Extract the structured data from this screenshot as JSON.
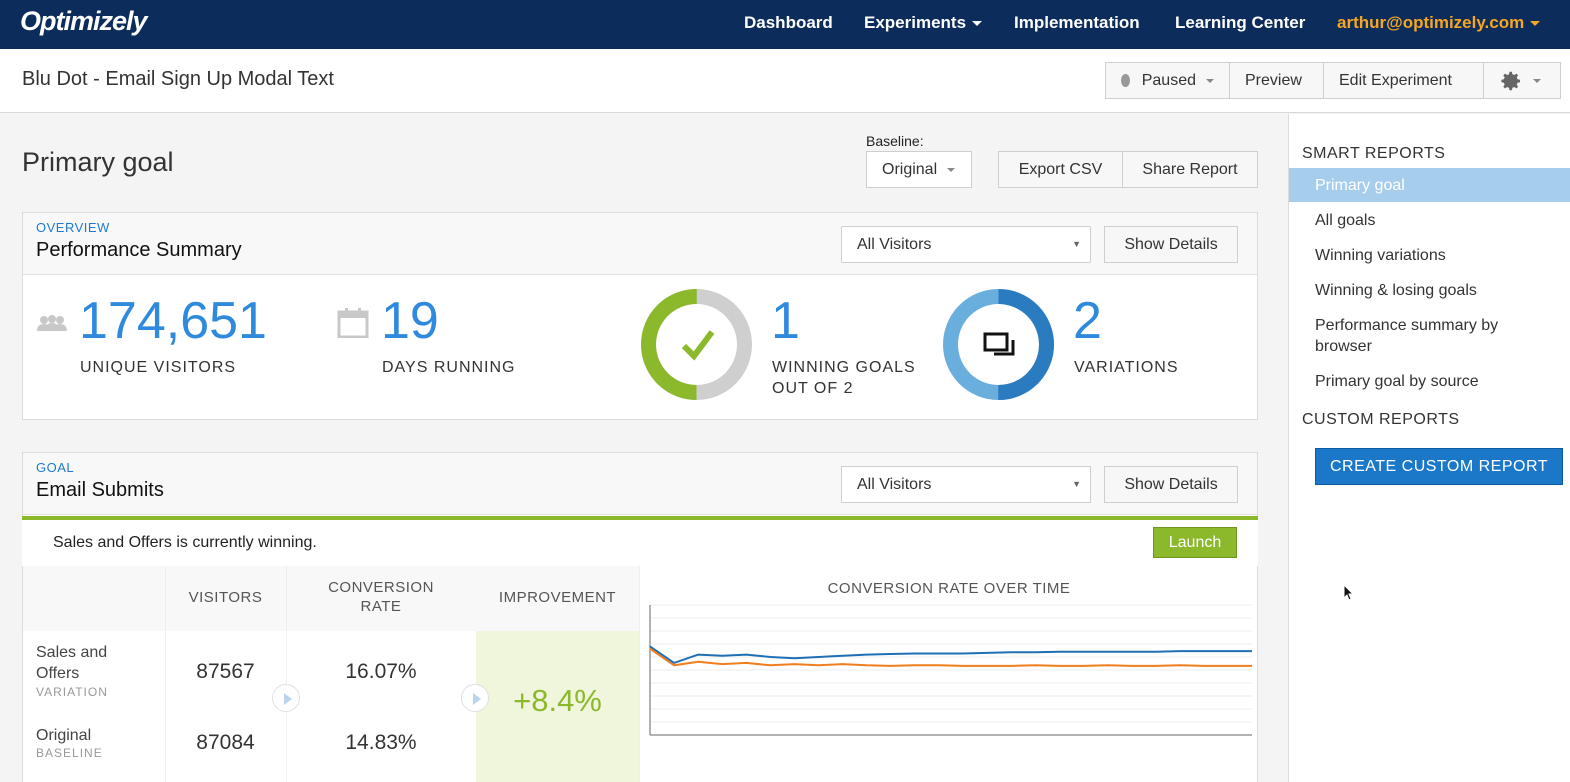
{
  "topnav": {
    "logo": "Optimizely",
    "items": [
      "Dashboard",
      "Experiments",
      "Implementation",
      "Learning Center"
    ],
    "user": "arthur@optimizely.com"
  },
  "subheader": {
    "title": "Blu Dot - Email Sign Up Modal Text",
    "status": "Paused",
    "preview": "Preview",
    "edit": "Edit Experiment"
  },
  "page": {
    "heading": "Primary goal",
    "baseline_label": "Baseline:",
    "baseline_value": "Original",
    "export_csv": "Export CSV",
    "share_report": "Share Report"
  },
  "overview": {
    "kicker": "OVERVIEW",
    "title": "Performance Summary",
    "segment": "All Visitors",
    "details": "Show Details",
    "unique_visitors": "174,651",
    "unique_visitors_label": "UNIQUE VISITORS",
    "days_running": "19",
    "days_running_label": "DAYS RUNNING",
    "winning_goals": "1",
    "winning_goals_label_1": "WINNING GOALS",
    "winning_goals_label_2": "OUT OF 2",
    "winning_fraction": 0.5,
    "variations": "2",
    "variations_label": "VARIATIONS"
  },
  "goal": {
    "kicker": "GOAL",
    "title": "Email Submits",
    "segment": "All Visitors",
    "details": "Show Details",
    "winning_text": "Sales and Offers is currently winning.",
    "launch": "Launch",
    "columns": {
      "visitors": "VISITORS",
      "conv1": "CONVERSION",
      "conv2": "RATE",
      "improvement": "IMPROVEMENT",
      "chart": "CONVERSION RATE OVER TIME"
    },
    "rows": [
      {
        "name1": "Sales and",
        "name2": "Offers",
        "sub": "VARIATION",
        "visitors": "87567",
        "rate": "16.07%"
      },
      {
        "name1": "Original",
        "sub": "BASELINE",
        "visitors": "87084",
        "rate": "14.83%"
      }
    ],
    "improvement_value": "+8.4%"
  },
  "sidebar": {
    "smart_title": "SMART REPORTS",
    "smart_items": [
      "Primary goal",
      "All goals",
      "Winning variations",
      "Winning & losing goals",
      "Performance summary by",
      "browser",
      "Primary goal by source"
    ],
    "custom_title": "CUSTOM REPORTS",
    "create_button": "CREATE CUSTOM REPORT"
  },
  "colors": {
    "nav": "#0c2c5b",
    "accent": "#2f8ade",
    "success": "#8cb82b",
    "user": "#f5a623",
    "series_variation": "#1f6fb5",
    "series_original": "#f07e1e"
  },
  "chart_data": {
    "type": "line",
    "title": "CONVERSION RATE OVER TIME",
    "series": [
      {
        "values": [
          0.165,
          0.151,
          0.158,
          0.157,
          0.158,
          0.156,
          0.155,
          0.156,
          0.157,
          0.158,
          0.1585,
          0.159,
          0.159,
          0.159,
          0.1595,
          0.16,
          0.16,
          0.1605,
          0.1605,
          0.1605,
          0.1605,
          0.1605,
          0.161,
          0.161,
          0.161,
          0.161
        ]
      },
      {
        "values": [
          0.163,
          0.149,
          0.152,
          0.15,
          0.151,
          0.149,
          0.15,
          0.149,
          0.15,
          0.149,
          0.1485,
          0.149,
          0.149,
          0.1485,
          0.1485,
          0.1485,
          0.149,
          0.1485,
          0.1485,
          0.149,
          0.1485,
          0.1485,
          0.149,
          0.1485,
          0.1485,
          0.1485
        ]
      }
    ],
    "ylim": [
      0.09,
      0.2
    ],
    "grid": true
  }
}
